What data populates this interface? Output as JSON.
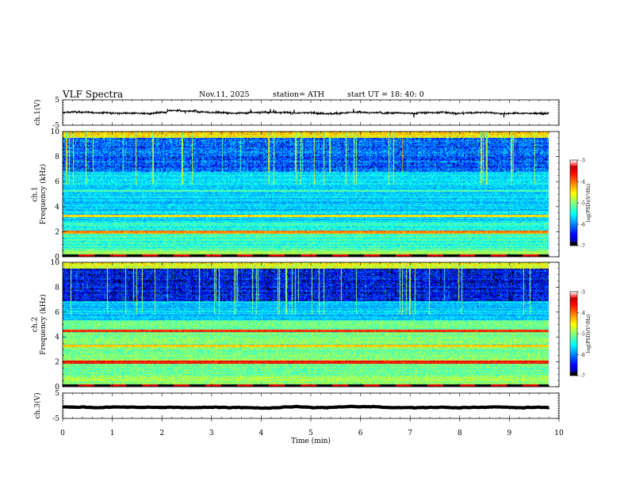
{
  "header": {
    "title": "VLF  Spectra",
    "date": "Nov.11, 2025",
    "station": "station= ATH",
    "start_ut": "start  UT  =   18: 40: 0"
  },
  "chart_data": [
    {
      "id": "ch1-voltage",
      "type": "line",
      "ylabel": "ch.1(V)",
      "ylim": [
        -5,
        5
      ],
      "yticks": [
        "5",
        "-5"
      ],
      "xlim": [
        0,
        10
      ],
      "series": [
        {
          "name": "ch.1",
          "x_range": [
            0,
            9.8
          ],
          "baseline": 0,
          "noise_amplitude": 0.6
        }
      ],
      "grid": false
    },
    {
      "id": "ch1-spectrogram",
      "type": "heatmap",
      "ylabel": "ch.1\nFrequency  (kHz)",
      "ylim": [
        0,
        10
      ],
      "yticks": [
        "0",
        "2",
        "4",
        "6",
        "8",
        "10"
      ],
      "xlim": [
        0,
        10
      ],
      "data_x_range": [
        0,
        9.8
      ],
      "colorbar": {
        "label": "log(PSD)(V²/Hz)",
        "range": [
          -7,
          -3
        ],
        "ticks": [
          "-3",
          "-4",
          "-5",
          "-6",
          "-7"
        ]
      }
    },
    {
      "id": "ch2-spectrogram",
      "type": "heatmap",
      "ylabel": "ch.2\nFrequency  (kHz)",
      "ylim": [
        0,
        10
      ],
      "yticks": [
        "0",
        "2",
        "4",
        "6",
        "8",
        "10"
      ],
      "xlim": [
        0,
        10
      ],
      "data_x_range": [
        0,
        9.8
      ],
      "colorbar": {
        "label": "log(PSD)(V²/Hz)",
        "range": [
          -7,
          -3
        ],
        "ticks": [
          "-3",
          "-4",
          "-5",
          "-6",
          "-7"
        ]
      }
    },
    {
      "id": "ch3-voltage",
      "type": "line",
      "ylabel": "ch.3(V)",
      "ylim": [
        -5,
        5
      ],
      "yticks": [
        "5",
        "-5"
      ],
      "xlim": [
        0,
        10
      ],
      "xlabel": "Time  (min)",
      "xticks": [
        "0",
        "1",
        "2",
        "3",
        "4",
        "5",
        "6",
        "7",
        "8",
        "9",
        "10"
      ],
      "series": [
        {
          "name": "ch.3",
          "x_range": [
            0,
            9.8
          ],
          "baseline": -0.5,
          "noise_amplitude": 0.05
        }
      ],
      "grid": false
    }
  ]
}
